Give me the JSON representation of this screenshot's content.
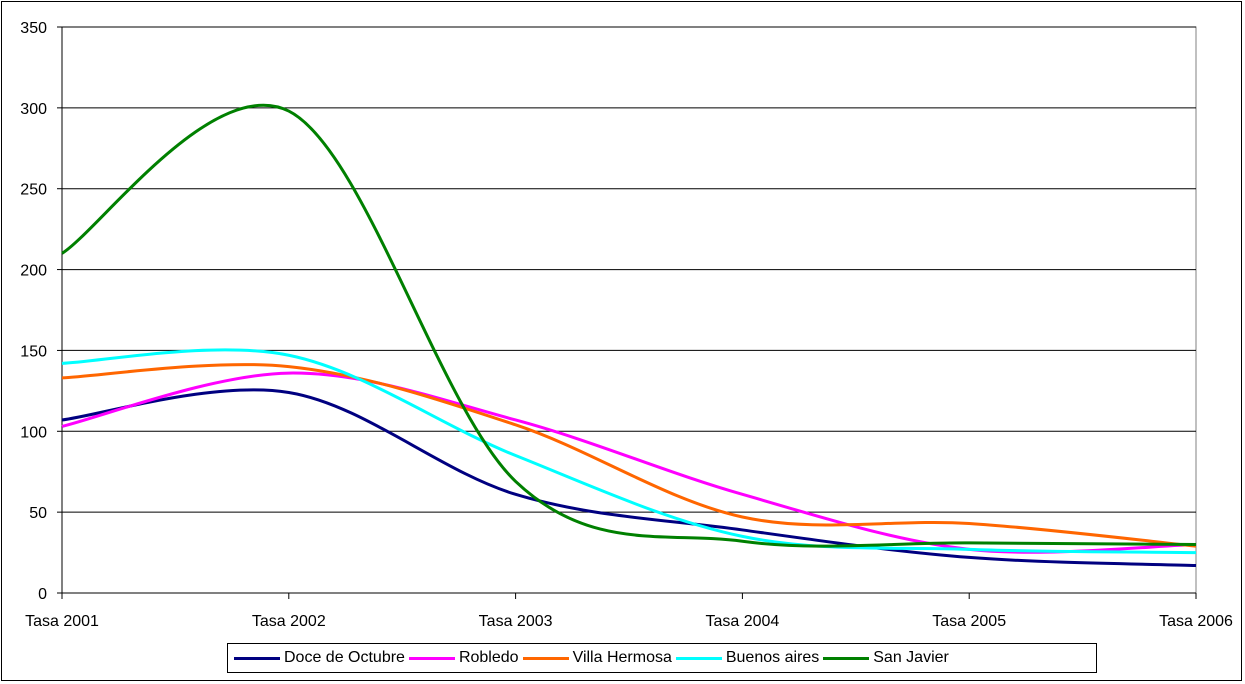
{
  "chart_data": {
    "type": "line",
    "title": "",
    "xlabel": "",
    "ylabel": "",
    "categories": [
      "Tasa 2001",
      "Tasa 2002",
      "Tasa 2003",
      "Tasa 2004",
      "Tasa 2005",
      "Tasa 2006"
    ],
    "ylim": [
      0,
      350
    ],
    "yticks": [
      0,
      50,
      100,
      150,
      200,
      250,
      300,
      350
    ],
    "grid": true,
    "legend_position": "bottom",
    "smooth": true,
    "series": [
      {
        "name": "Doce de Octubre",
        "color": "#000080",
        "values": [
          107,
          124,
          61,
          39,
          22,
          17
        ]
      },
      {
        "name": "Robledo",
        "color": "#FF00FF",
        "values": [
          103,
          136,
          107,
          61,
          27,
          30
        ]
      },
      {
        "name": "Villa Hermosa",
        "color": "#FF6600",
        "values": [
          133,
          140,
          104,
          47,
          43,
          29
        ]
      },
      {
        "name": "Buenos aires",
        "color": "#00FFFF",
        "values": [
          142,
          147,
          85,
          35,
          27,
          25
        ]
      },
      {
        "name": "San Javier",
        "color": "#008000",
        "values": [
          210,
          298,
          69,
          32,
          31,
          30
        ]
      }
    ]
  }
}
